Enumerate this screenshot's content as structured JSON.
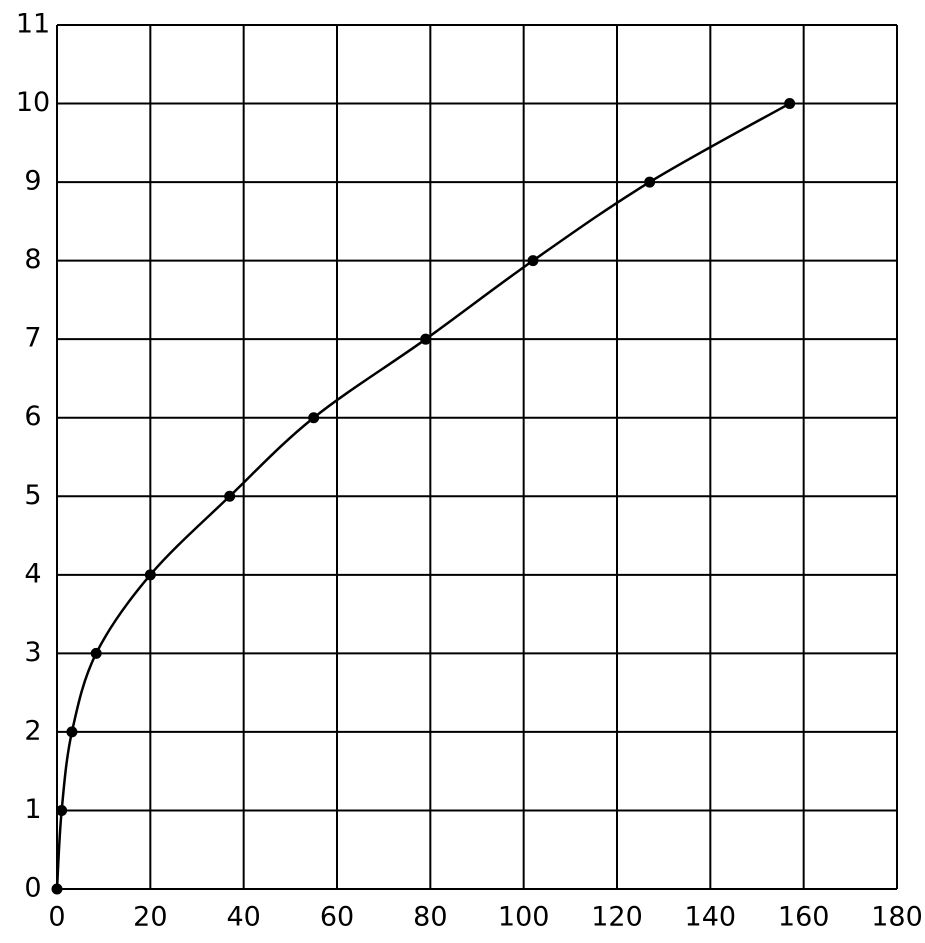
{
  "chart_data": {
    "type": "line",
    "x": [
      0,
      1,
      3.2,
      8.4,
      20,
      37,
      55,
      79,
      102,
      127,
      157
    ],
    "series": [
      {
        "color": "#000000",
        "values": [
          0,
          1,
          2,
          3,
          4,
          5,
          6,
          7,
          8,
          9,
          10
        ]
      }
    ],
    "xlim": [
      0,
      180
    ],
    "ylim": [
      0,
      11
    ],
    "xticks": [
      0,
      20,
      40,
      60,
      80,
      100,
      120,
      140,
      160,
      180
    ],
    "yticks": [
      0,
      1,
      2,
      3,
      4,
      5,
      6,
      7,
      8,
      9,
      10,
      11
    ],
    "grid": true,
    "markers": true,
    "smooth": true
  }
}
